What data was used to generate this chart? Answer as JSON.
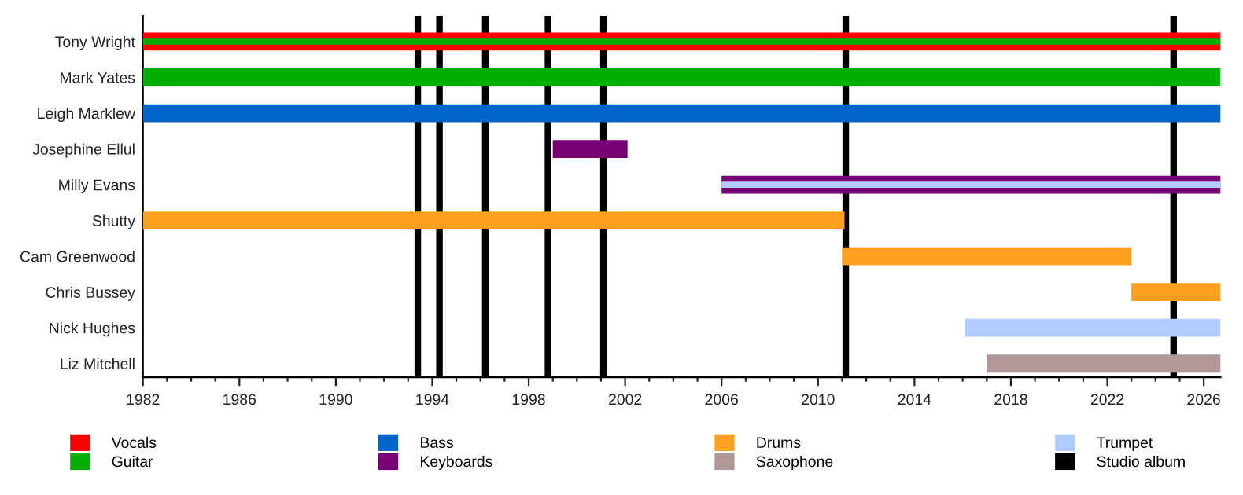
{
  "chart_data": {
    "type": "bar",
    "orientation": "horizontal",
    "categories": [
      "Tony Wright",
      "Mark Yates",
      "Leigh Marklew",
      "Josephine Ellul",
      "Milly Evans",
      "Shutty",
      "Cam Greenwood",
      "Chris Bussey",
      "Nick Hughes",
      "Liz Mitchell"
    ],
    "series": [
      {
        "name": "Vocals",
        "color": "#ff0000",
        "values": [
          44.7,
          null,
          null,
          null,
          null,
          null,
          null,
          null,
          null,
          null
        ],
        "base": [
          1982,
          null,
          null,
          null,
          null,
          null,
          null,
          null,
          null,
          null
        ]
      },
      {
        "name": "Guitar",
        "color": "#00b000",
        "values": [
          44.7,
          44.7,
          null,
          null,
          null,
          null,
          null,
          null,
          null,
          null
        ],
        "base": [
          1982,
          1982,
          null,
          null,
          null,
          null,
          null,
          null,
          null,
          null
        ]
      },
      {
        "name": "Bass",
        "color": "#0066cc",
        "values": [
          null,
          null,
          44.7,
          null,
          null,
          null,
          null,
          null,
          null,
          null
        ],
        "base": [
          null,
          null,
          1982,
          null,
          null,
          null,
          null,
          null,
          null,
          null
        ]
      },
      {
        "name": "Keyboards",
        "color": "#770077",
        "values": [
          null,
          null,
          null,
          3.1,
          20.7,
          null,
          null,
          null,
          null,
          null
        ],
        "base": [
          null,
          null,
          null,
          1999.0,
          2006.0,
          null,
          null,
          null,
          null,
          null
        ]
      },
      {
        "name": "Drums",
        "color": "#ffa020",
        "values": [
          null,
          null,
          null,
          null,
          null,
          29.1,
          12.0,
          3.7,
          null,
          null
        ],
        "base": [
          null,
          null,
          null,
          null,
          null,
          1982,
          2011.0,
          2023.0,
          null,
          null
        ]
      },
      {
        "name": "Saxophone",
        "color": "#b09898",
        "values": [
          null,
          null,
          null,
          null,
          null,
          null,
          null,
          null,
          null,
          9.7
        ],
        "base": [
          null,
          null,
          null,
          null,
          null,
          null,
          null,
          null,
          null,
          2017.0
        ]
      },
      {
        "name": "Trumpet",
        "color": "#b0ccff",
        "values": [
          null,
          null,
          null,
          null,
          20.7,
          null,
          null,
          null,
          10.6,
          null
        ],
        "base": [
          null,
          null,
          null,
          null,
          2006.0,
          null,
          null,
          null,
          2016.1,
          null
        ]
      }
    ],
    "ref_lines": [
      {
        "axis": "x",
        "value": 1993.4,
        "label": "Studio album",
        "color": "#000000"
      },
      {
        "axis": "x",
        "value": 1994.3,
        "color": "#000000"
      },
      {
        "axis": "x",
        "value": 1996.2,
        "color": "#000000"
      },
      {
        "axis": "x",
        "value": 1998.8,
        "color": "#000000"
      },
      {
        "axis": "x",
        "value": 2001.1,
        "color": "#000000"
      },
      {
        "axis": "x",
        "value": 2011.15,
        "color": "#000000"
      },
      {
        "axis": "x",
        "value": 2024.75,
        "color": "#000000"
      }
    ],
    "xlim": [
      1982,
      2026.7
    ],
    "xticks": [
      1982,
      {
        "value": 1983,
        "label": null
      },
      {
        "value": 1984,
        "label": null
      },
      {
        "value": 1985,
        "label": null
      },
      1986,
      {
        "value": 1987,
        "label": null
      },
      {
        "value": 1988,
        "label": null
      },
      {
        "value": 1989,
        "label": null
      },
      1990,
      {
        "value": 1991,
        "label": null
      },
      {
        "value": 1992,
        "label": null
      },
      {
        "value": 1993,
        "label": null
      },
      1994,
      {
        "value": 1995,
        "label": null
      },
      {
        "value": 1996,
        "label": null
      },
      {
        "value": 1997,
        "label": null
      },
      1998,
      {
        "value": 1999,
        "label": null
      },
      {
        "value": 2000,
        "label": null
      },
      {
        "value": 2001,
        "label": null
      },
      2002,
      {
        "value": 2003,
        "label": null
      },
      {
        "value": 2004,
        "label": null
      },
      {
        "value": 2005,
        "label": null
      },
      2006,
      {
        "value": 2007,
        "label": null
      },
      {
        "value": 2008,
        "label": null
      },
      {
        "value": 2009,
        "label": null
      },
      2010,
      {
        "value": 2011,
        "label": null
      },
      {
        "value": 2012,
        "label": null
      },
      {
        "value": 2013,
        "label": null
      },
      2014,
      {
        "value": 2015,
        "label": null
      },
      {
        "value": 2016,
        "label": null
      },
      {
        "value": 2017,
        "label": null
      },
      2018,
      {
        "value": 2019,
        "label": null
      },
      {
        "value": 2020,
        "label": null
      },
      {
        "value": 2021,
        "label": null
      },
      2022,
      {
        "value": 2023,
        "label": null
      },
      {
        "value": 2024,
        "label": null
      },
      {
        "value": 2025,
        "label": null
      },
      2026
    ],
    "grid": false,
    "legend": "bottom"
  }
}
